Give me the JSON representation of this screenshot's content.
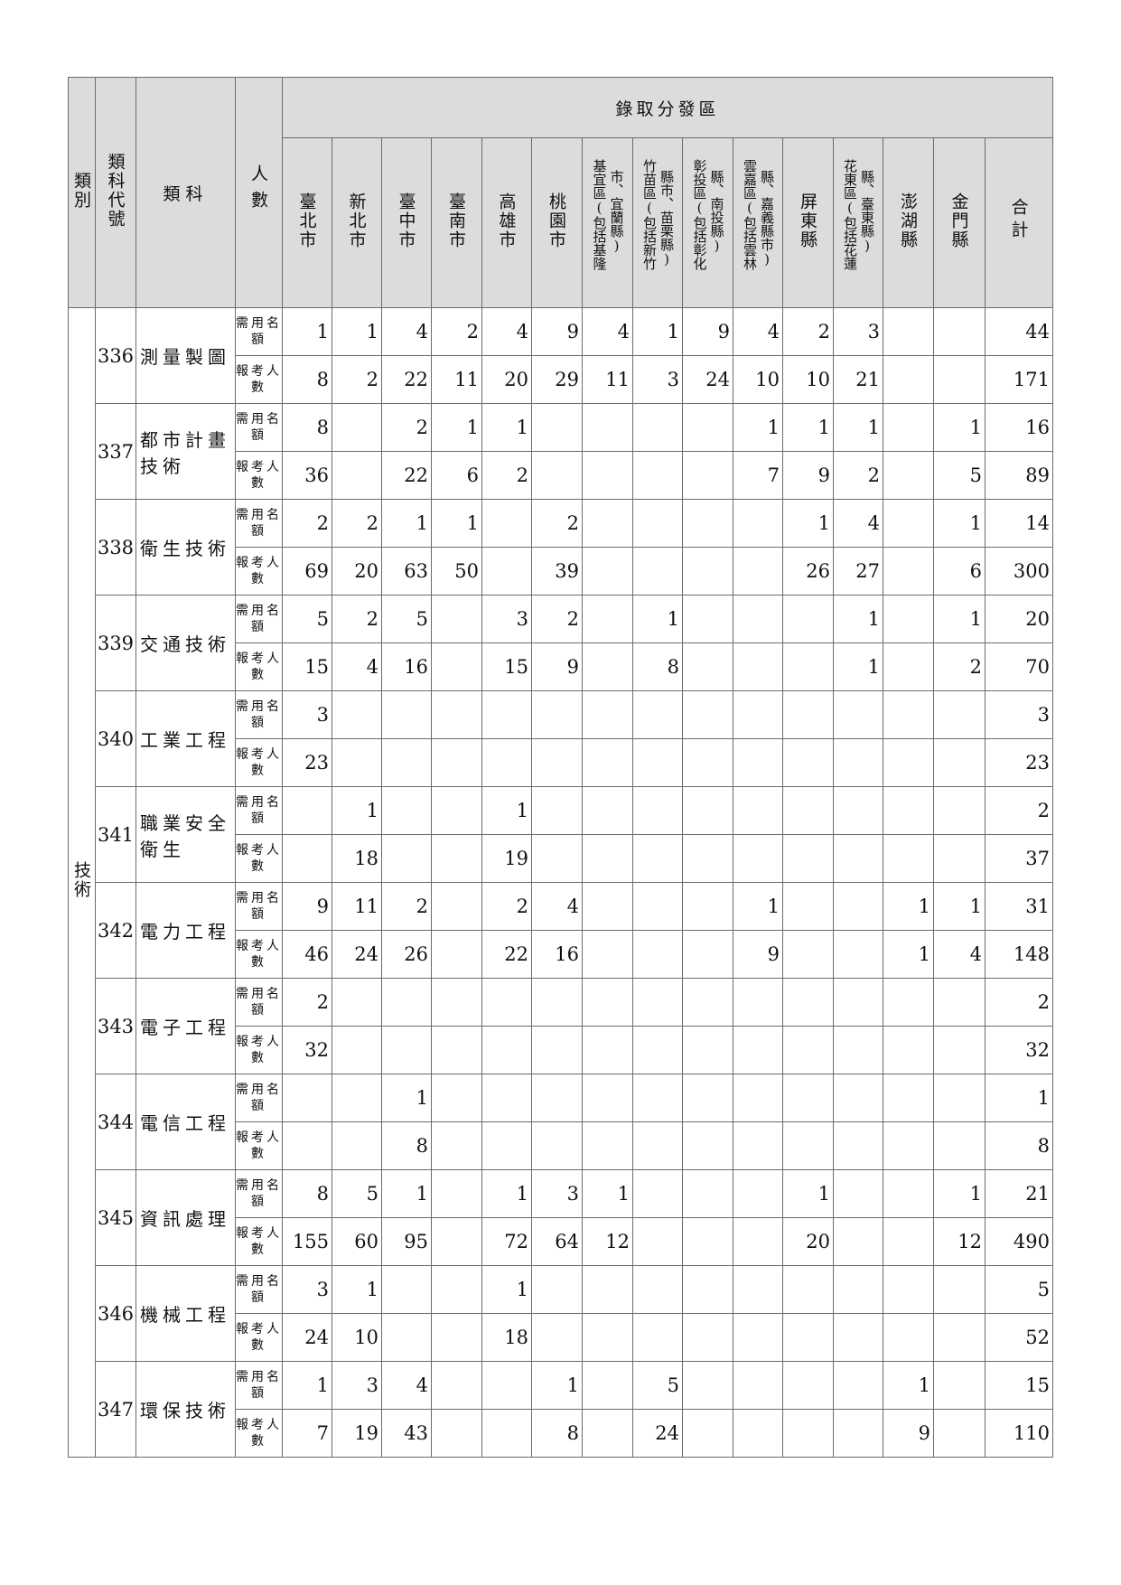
{
  "header": {
    "category": "類別",
    "code": "類科代號",
    "subject": "類科",
    "people": "人數",
    "regions_group": "錄取分發區",
    "regions": [
      {
        "lines": [
          "臺北市"
        ]
      },
      {
        "lines": [
          "新北市"
        ]
      },
      {
        "lines": [
          "臺中市"
        ]
      },
      {
        "lines": [
          "臺南市"
        ]
      },
      {
        "lines": [
          "高雄市"
        ]
      },
      {
        "lines": [
          "桃園市"
        ]
      },
      {
        "lines": [
          "基宜區(包括基隆",
          "市、宜蘭縣)"
        ]
      },
      {
        "lines": [
          "竹苗區(包括新竹",
          "縣市、苗栗縣)"
        ]
      },
      {
        "lines": [
          "彰投區(包括彰化",
          "縣、南投縣)"
        ]
      },
      {
        "lines": [
          "雲嘉區(包括雲林",
          "縣、嘉義縣市)"
        ]
      },
      {
        "lines": [
          "屏東縣"
        ]
      },
      {
        "lines": [
          "花東區(包括花蓮",
          "縣、臺東縣)"
        ]
      },
      {
        "lines": [
          "澎湖縣"
        ]
      },
      {
        "lines": [
          "金門縣"
        ]
      }
    ],
    "total": "合計"
  },
  "category_value": "技術",
  "row_labels": {
    "quota": "需用名額",
    "applicants": "報考人數"
  },
  "subjects": [
    {
      "code": "336",
      "name": "測量製圖",
      "quota": [
        1,
        1,
        4,
        2,
        4,
        9,
        4,
        1,
        9,
        4,
        2,
        3,
        null,
        null,
        44
      ],
      "applicants": [
        8,
        2,
        22,
        11,
        20,
        29,
        11,
        3,
        24,
        10,
        10,
        21,
        null,
        null,
        171
      ]
    },
    {
      "code": "337",
      "name": "都市計畫技術",
      "quota": [
        8,
        null,
        2,
        1,
        1,
        null,
        null,
        null,
        null,
        1,
        1,
        1,
        null,
        1,
        16
      ],
      "applicants": [
        36,
        null,
        22,
        6,
        2,
        null,
        null,
        null,
        null,
        7,
        9,
        2,
        null,
        5,
        89
      ]
    },
    {
      "code": "338",
      "name": "衛生技術",
      "quota": [
        2,
        2,
        1,
        1,
        null,
        2,
        null,
        null,
        null,
        null,
        1,
        4,
        null,
        1,
        14
      ],
      "applicants": [
        69,
        20,
        63,
        50,
        null,
        39,
        null,
        null,
        null,
        null,
        26,
        27,
        null,
        6,
        300
      ]
    },
    {
      "code": "339",
      "name": "交通技術",
      "quota": [
        5,
        2,
        5,
        null,
        3,
        2,
        null,
        1,
        null,
        null,
        null,
        1,
        null,
        1,
        20
      ],
      "applicants": [
        15,
        4,
        16,
        null,
        15,
        9,
        null,
        8,
        null,
        null,
        null,
        1,
        null,
        2,
        70
      ]
    },
    {
      "code": "340",
      "name": "工業工程",
      "quota": [
        3,
        null,
        null,
        null,
        null,
        null,
        null,
        null,
        null,
        null,
        null,
        null,
        null,
        null,
        3
      ],
      "applicants": [
        23,
        null,
        null,
        null,
        null,
        null,
        null,
        null,
        null,
        null,
        null,
        null,
        null,
        null,
        23
      ]
    },
    {
      "code": "341",
      "name": "職業安全衛生",
      "quota": [
        null,
        1,
        null,
        null,
        1,
        null,
        null,
        null,
        null,
        null,
        null,
        null,
        null,
        null,
        2
      ],
      "applicants": [
        null,
        18,
        null,
        null,
        19,
        null,
        null,
        null,
        null,
        null,
        null,
        null,
        null,
        null,
        37
      ]
    },
    {
      "code": "342",
      "name": "電力工程",
      "quota": [
        9,
        11,
        2,
        null,
        2,
        4,
        null,
        null,
        null,
        1,
        null,
        null,
        1,
        1,
        31
      ],
      "applicants": [
        46,
        24,
        26,
        null,
        22,
        16,
        null,
        null,
        null,
        9,
        null,
        null,
        1,
        4,
        148
      ]
    },
    {
      "code": "343",
      "name": "電子工程",
      "quota": [
        2,
        null,
        null,
        null,
        null,
        null,
        null,
        null,
        null,
        null,
        null,
        null,
        null,
        null,
        2
      ],
      "applicants": [
        32,
        null,
        null,
        null,
        null,
        null,
        null,
        null,
        null,
        null,
        null,
        null,
        null,
        null,
        32
      ]
    },
    {
      "code": "344",
      "name": "電信工程",
      "quota": [
        null,
        null,
        1,
        null,
        null,
        null,
        null,
        null,
        null,
        null,
        null,
        null,
        null,
        null,
        1
      ],
      "applicants": [
        null,
        null,
        8,
        null,
        null,
        null,
        null,
        null,
        null,
        null,
        null,
        null,
        null,
        null,
        8
      ]
    },
    {
      "code": "345",
      "name": "資訊處理",
      "quota": [
        8,
        5,
        1,
        null,
        1,
        3,
        1,
        null,
        null,
        null,
        1,
        null,
        null,
        1,
        21
      ],
      "applicants": [
        155,
        60,
        95,
        null,
        72,
        64,
        12,
        null,
        null,
        null,
        20,
        null,
        null,
        12,
        490
      ]
    },
    {
      "code": "346",
      "name": "機械工程",
      "quota": [
        3,
        1,
        null,
        null,
        1,
        null,
        null,
        null,
        null,
        null,
        null,
        null,
        null,
        null,
        5
      ],
      "applicants": [
        24,
        10,
        null,
        null,
        18,
        null,
        null,
        null,
        null,
        null,
        null,
        null,
        null,
        null,
        52
      ]
    },
    {
      "code": "347",
      "name": "環保技術",
      "quota": [
        1,
        3,
        4,
        null,
        null,
        1,
        null,
        5,
        null,
        null,
        null,
        null,
        1,
        null,
        15
      ],
      "applicants": [
        7,
        19,
        43,
        null,
        null,
        8,
        null,
        24,
        null,
        null,
        null,
        null,
        9,
        null,
        110
      ]
    }
  ]
}
